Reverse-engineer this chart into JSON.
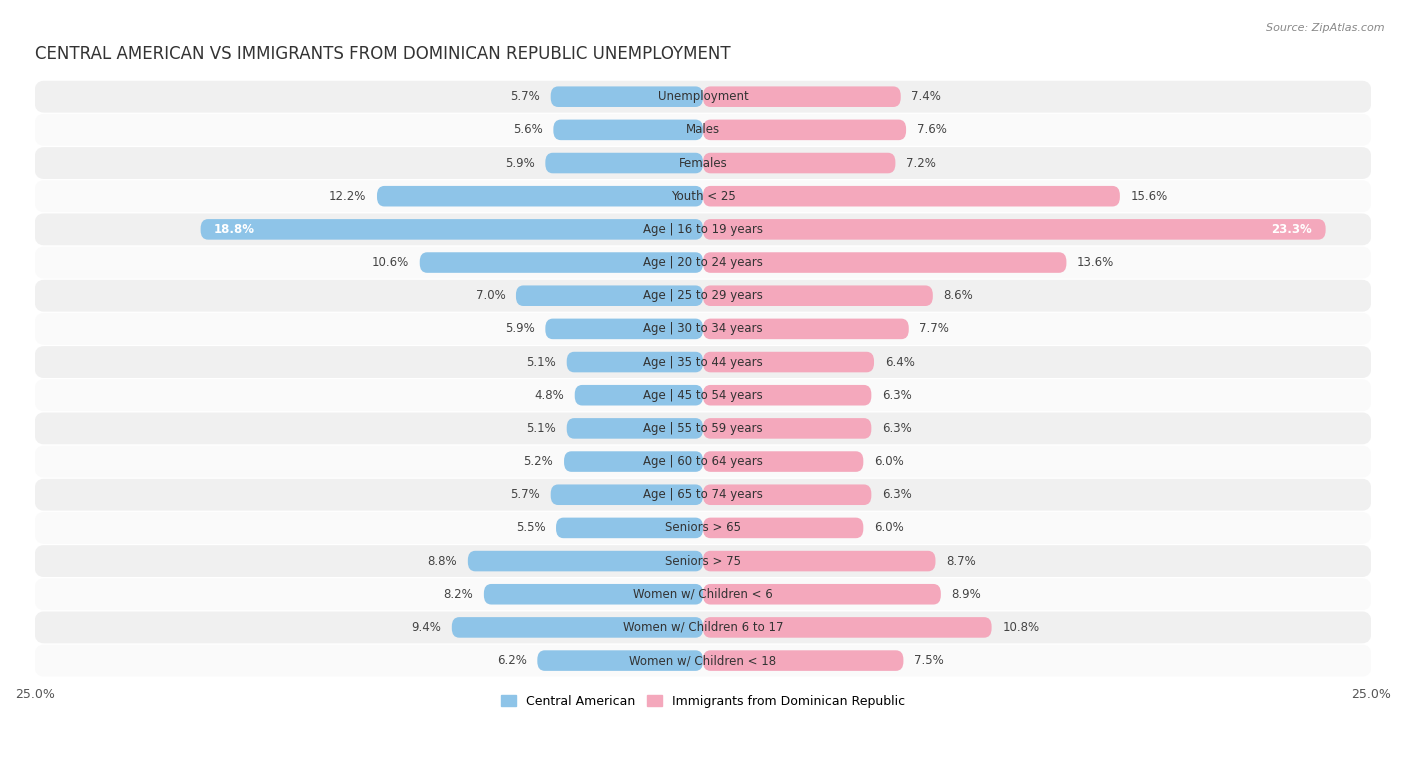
{
  "title": "CENTRAL AMERICAN VS IMMIGRANTS FROM DOMINICAN REPUBLIC UNEMPLOYMENT",
  "source": "Source: ZipAtlas.com",
  "categories": [
    "Unemployment",
    "Males",
    "Females",
    "Youth < 25",
    "Age | 16 to 19 years",
    "Age | 20 to 24 years",
    "Age | 25 to 29 years",
    "Age | 30 to 34 years",
    "Age | 35 to 44 years",
    "Age | 45 to 54 years",
    "Age | 55 to 59 years",
    "Age | 60 to 64 years",
    "Age | 65 to 74 years",
    "Seniors > 65",
    "Seniors > 75",
    "Women w/ Children < 6",
    "Women w/ Children 6 to 17",
    "Women w/ Children < 18"
  ],
  "central_american": [
    5.7,
    5.6,
    5.9,
    12.2,
    18.8,
    10.6,
    7.0,
    5.9,
    5.1,
    4.8,
    5.1,
    5.2,
    5.7,
    5.5,
    8.8,
    8.2,
    9.4,
    6.2
  ],
  "dominican": [
    7.4,
    7.6,
    7.2,
    15.6,
    23.3,
    13.6,
    8.6,
    7.7,
    6.4,
    6.3,
    6.3,
    6.0,
    6.3,
    6.0,
    8.7,
    8.9,
    10.8,
    7.5
  ],
  "color_central": "#8EC4E8",
  "color_dominican": "#F4A8BC",
  "row_colors_odd": "#f0f0f0",
  "row_colors_even": "#fafafa",
  "xlim": 25.0,
  "legend_label_central": "Central American",
  "legend_label_dominican": "Immigrants from Dominican Republic",
  "title_fontsize": 12,
  "label_fontsize": 8.5,
  "bar_height": 0.62
}
